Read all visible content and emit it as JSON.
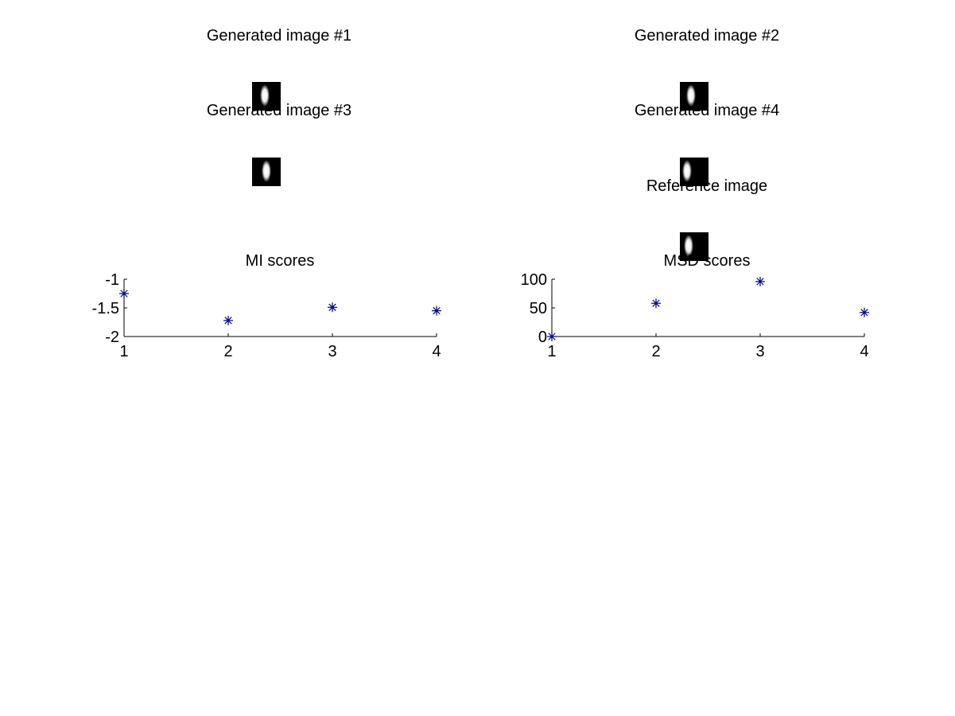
{
  "image_panels": [
    {
      "title": "Generated image #1"
    },
    {
      "title": "Generated image #2"
    },
    {
      "title": "Generated image #3"
    },
    {
      "title": "Generated image #4"
    },
    {
      "title": "Reference image"
    }
  ],
  "chart_data": [
    {
      "type": "scatter",
      "title": "MI scores",
      "xlabel": "",
      "ylabel": "",
      "x": [
        1,
        2,
        3,
        4
      ],
      "y": [
        -1.25,
        -1.72,
        -1.49,
        -1.55
      ],
      "xlim": [
        1,
        4
      ],
      "ylim": [
        -2,
        -1
      ],
      "xticks": [
        1,
        2,
        3,
        4
      ],
      "yticks": [
        -1,
        -1.5,
        -2
      ],
      "xtick_labels": [
        "1",
        "2",
        "3",
        "4"
      ],
      "ytick_labels": [
        "-1",
        "-1.5",
        "-2"
      ],
      "marker": "asterisk",
      "color": "#00007f",
      "grid": false,
      "legend": "none"
    },
    {
      "type": "scatter",
      "title": "MSD scores",
      "xlabel": "",
      "ylabel": "",
      "x": [
        1,
        2,
        3,
        4
      ],
      "y": [
        0,
        58,
        96,
        42
      ],
      "xlim": [
        1,
        4
      ],
      "ylim": [
        0,
        100
      ],
      "xticks": [
        1,
        2,
        3,
        4
      ],
      "yticks": [
        100,
        50,
        0
      ],
      "xtick_labels": [
        "1",
        "2",
        "3",
        "4"
      ],
      "ytick_labels": [
        "100",
        "50",
        "0"
      ],
      "marker": "asterisk",
      "color": "#00007f",
      "grid": false,
      "legend": "none"
    }
  ]
}
